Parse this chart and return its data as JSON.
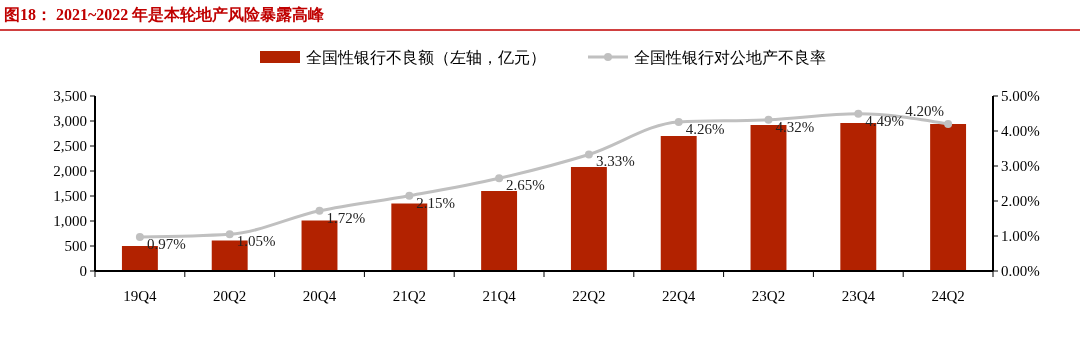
{
  "chart_data": {
    "type": "bar",
    "title": "图18：  2021~2022 年是本轮地产风险暴露高峰",
    "categories": [
      "19Q4",
      "20Q2",
      "20Q4",
      "21Q2",
      "21Q4",
      "22Q2",
      "22Q4",
      "23Q2",
      "23Q4",
      "24Q2"
    ],
    "series": [
      {
        "name": "全国性银行不良额（左轴，亿元）",
        "color": "#b22200",
        "values": [
          500,
          610,
          1010,
          1350,
          1600,
          2080,
          2700,
          2920,
          2960,
          2940
        ]
      },
      {
        "name": "全国性银行对公地产不良率",
        "type": "line",
        "axis": "y2",
        "color": "#c0c0c0",
        "marker": "circle",
        "values": [
          0.97,
          1.05,
          1.72,
          2.15,
          2.65,
          3.33,
          4.26,
          4.32,
          4.49,
          4.2
        ],
        "value_labels": [
          "0.97%",
          "1.05%",
          "1.72%",
          "2.15%",
          "2.65%",
          "3.33%",
          "4.26%",
          "4.32%",
          "4.49%",
          "4.20%"
        ]
      }
    ],
    "ylim": [
      0,
      3500
    ],
    "yticks": [
      {
        "value": 0,
        "label": "0"
      },
      {
        "value": 500,
        "label": "500"
      },
      {
        "value": 1000,
        "label": "1,000"
      },
      {
        "value": 1500,
        "label": "1,500"
      },
      {
        "value": 2000,
        "label": "2,000"
      },
      {
        "value": 2500,
        "label": "2,500"
      },
      {
        "value": 3000,
        "label": "3,000"
      },
      {
        "value": 3500,
        "label": "3,500"
      }
    ],
    "y2lim": [
      0,
      5
    ],
    "y2ticks": [
      {
        "value": 0,
        "label": "0.00%"
      },
      {
        "value": 1,
        "label": "1.00%"
      },
      {
        "value": 2,
        "label": "2.00%"
      },
      {
        "value": 3,
        "label": "3.00%"
      },
      {
        "value": 4,
        "label": "4.00%"
      },
      {
        "value": 5,
        "label": "5.00%"
      }
    ],
    "legend": "top"
  }
}
